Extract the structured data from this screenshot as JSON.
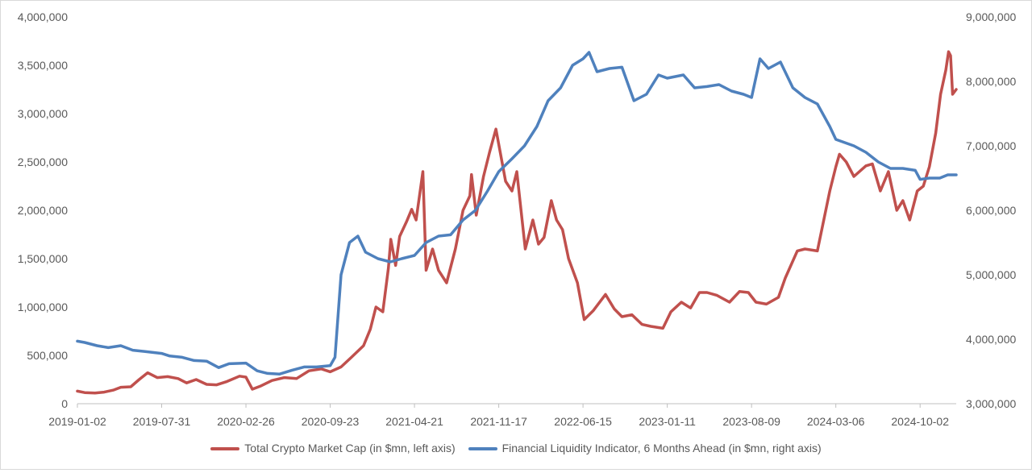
{
  "chart_data": {
    "type": "line",
    "title": "",
    "xlabel": "",
    "ylabel_left": "",
    "ylabel_right": "",
    "grid": false,
    "legend_position": "bottom",
    "x_tick_labels": [
      "2019-01-02",
      "2019-07-31",
      "2020-02-26",
      "2020-09-23",
      "2021-04-21",
      "2021-11-17",
      "2022-06-15",
      "2023-01-11",
      "2023-08-09",
      "2024-03-06",
      "2024-10-02"
    ],
    "x_range": [
      "2019-01-02",
      "2024-12-31"
    ],
    "y_left": {
      "range": [
        0,
        4000000
      ],
      "ticks": [
        "0",
        "500,000",
        "1,000,000",
        "1,500,000",
        "2,000,000",
        "2,500,000",
        "3,000,000",
        "3,500,000",
        "4,000,000"
      ]
    },
    "y_right": {
      "range": [
        3000000,
        9000000
      ],
      "ticks": [
        "3,000,000",
        "4,000,000",
        "5,000,000",
        "6,000,000",
        "7,000,000",
        "8,000,000",
        "9,000,000"
      ]
    },
    "series": [
      {
        "name": "Total Crypto Market Cap (in $mn, left axis)",
        "axis": "left",
        "color": "#c0504d",
        "points": [
          [
            "2019-01-02",
            130000
          ],
          [
            "2019-01-20",
            115000
          ],
          [
            "2019-02-15",
            110000
          ],
          [
            "2019-03-10",
            120000
          ],
          [
            "2019-04-01",
            140000
          ],
          [
            "2019-04-20",
            170000
          ],
          [
            "2019-05-15",
            175000
          ],
          [
            "2019-06-05",
            250000
          ],
          [
            "2019-06-26",
            320000
          ],
          [
            "2019-07-20",
            270000
          ],
          [
            "2019-08-15",
            280000
          ],
          [
            "2019-09-10",
            260000
          ],
          [
            "2019-10-01",
            215000
          ],
          [
            "2019-10-25",
            250000
          ],
          [
            "2019-11-20",
            200000
          ],
          [
            "2019-12-15",
            195000
          ],
          [
            "2020-01-10",
            230000
          ],
          [
            "2020-02-10",
            285000
          ],
          [
            "2020-02-26",
            275000
          ],
          [
            "2020-03-13",
            150000
          ],
          [
            "2020-04-01",
            180000
          ],
          [
            "2020-05-01",
            240000
          ],
          [
            "2020-06-01",
            270000
          ],
          [
            "2020-07-01",
            260000
          ],
          [
            "2020-08-01",
            340000
          ],
          [
            "2020-09-01",
            360000
          ],
          [
            "2020-09-23",
            330000
          ],
          [
            "2020-10-20",
            380000
          ],
          [
            "2020-11-15",
            480000
          ],
          [
            "2020-12-15",
            600000
          ],
          [
            "2021-01-01",
            770000
          ],
          [
            "2021-01-15",
            1000000
          ],
          [
            "2021-02-01",
            950000
          ],
          [
            "2021-02-15",
            1400000
          ],
          [
            "2021-02-21",
            1700000
          ],
          [
            "2021-03-05",
            1430000
          ],
          [
            "2021-03-15",
            1730000
          ],
          [
            "2021-04-01",
            1880000
          ],
          [
            "2021-04-14",
            2010000
          ],
          [
            "2021-04-25",
            1900000
          ],
          [
            "2021-05-12",
            2400000
          ],
          [
            "2021-05-20",
            1380000
          ],
          [
            "2021-06-05",
            1600000
          ],
          [
            "2021-06-20",
            1380000
          ],
          [
            "2021-07-10",
            1250000
          ],
          [
            "2021-08-01",
            1600000
          ],
          [
            "2021-08-20",
            2000000
          ],
          [
            "2021-09-06",
            2150000
          ],
          [
            "2021-09-10",
            2370000
          ],
          [
            "2021-09-22",
            1950000
          ],
          [
            "2021-10-10",
            2350000
          ],
          [
            "2021-10-25",
            2600000
          ],
          [
            "2021-11-10",
            2840000
          ],
          [
            "2021-12-04",
            2300000
          ],
          [
            "2021-12-20",
            2200000
          ],
          [
            "2022-01-01",
            2400000
          ],
          [
            "2022-01-22",
            1600000
          ],
          [
            "2022-02-10",
            1900000
          ],
          [
            "2022-02-24",
            1650000
          ],
          [
            "2022-03-10",
            1720000
          ],
          [
            "2022-03-28",
            2100000
          ],
          [
            "2022-04-10",
            1900000
          ],
          [
            "2022-04-25",
            1800000
          ],
          [
            "2022-05-10",
            1500000
          ],
          [
            "2022-06-01",
            1250000
          ],
          [
            "2022-06-18",
            870000
          ],
          [
            "2022-07-10",
            960000
          ],
          [
            "2022-08-10",
            1130000
          ],
          [
            "2022-09-01",
            980000
          ],
          [
            "2022-09-20",
            900000
          ],
          [
            "2022-10-15",
            920000
          ],
          [
            "2022-11-09",
            820000
          ],
          [
            "2022-12-01",
            800000
          ],
          [
            "2022-12-31",
            780000
          ],
          [
            "2023-01-20",
            950000
          ],
          [
            "2023-02-15",
            1050000
          ],
          [
            "2023-03-10",
            990000
          ],
          [
            "2023-04-01",
            1150000
          ],
          [
            "2023-04-20",
            1150000
          ],
          [
            "2023-05-15",
            1120000
          ],
          [
            "2023-06-15",
            1050000
          ],
          [
            "2023-07-10",
            1160000
          ],
          [
            "2023-08-01",
            1150000
          ],
          [
            "2023-08-20",
            1050000
          ],
          [
            "2023-09-15",
            1030000
          ],
          [
            "2023-10-15",
            1100000
          ],
          [
            "2023-11-01",
            1300000
          ],
          [
            "2023-12-01",
            1580000
          ],
          [
            "2023-12-20",
            1600000
          ],
          [
            "2024-01-20",
            1580000
          ],
          [
            "2024-02-20",
            2200000
          ],
          [
            "2024-03-06",
            2450000
          ],
          [
            "2024-03-15",
            2580000
          ],
          [
            "2024-04-01",
            2500000
          ],
          [
            "2024-04-20",
            2350000
          ],
          [
            "2024-05-20",
            2460000
          ],
          [
            "2024-06-05",
            2480000
          ],
          [
            "2024-06-25",
            2200000
          ],
          [
            "2024-07-15",
            2400000
          ],
          [
            "2024-08-05",
            2000000
          ],
          [
            "2024-08-20",
            2100000
          ],
          [
            "2024-09-06",
            1900000
          ],
          [
            "2024-09-25",
            2200000
          ],
          [
            "2024-10-10",
            2250000
          ],
          [
            "2024-10-25",
            2450000
          ],
          [
            "2024-11-10",
            2800000
          ],
          [
            "2024-11-22",
            3200000
          ],
          [
            "2024-12-05",
            3450000
          ],
          [
            "2024-12-12",
            3640000
          ],
          [
            "2024-12-17",
            3600000
          ],
          [
            "2024-12-22",
            3200000
          ],
          [
            "2024-12-31",
            3250000
          ]
        ]
      },
      {
        "name": "Financial Liquidity Indicator,  6 Months Ahead (in $mn,  right axis)",
        "axis": "right",
        "color": "#4f81bd",
        "points": [
          [
            "2019-01-02",
            3970000
          ],
          [
            "2019-01-20",
            3950000
          ],
          [
            "2019-02-20",
            3900000
          ],
          [
            "2019-03-20",
            3870000
          ],
          [
            "2019-04-20",
            3900000
          ],
          [
            "2019-05-20",
            3830000
          ],
          [
            "2019-06-20",
            3810000
          ],
          [
            "2019-07-31",
            3780000
          ],
          [
            "2019-08-20",
            3740000
          ],
          [
            "2019-09-20",
            3720000
          ],
          [
            "2019-10-20",
            3670000
          ],
          [
            "2019-11-20",
            3660000
          ],
          [
            "2019-12-20",
            3560000
          ],
          [
            "2020-01-15",
            3620000
          ],
          [
            "2020-02-26",
            3630000
          ],
          [
            "2020-03-25",
            3510000
          ],
          [
            "2020-04-20",
            3470000
          ],
          [
            "2020-05-20",
            3460000
          ],
          [
            "2020-06-20",
            3520000
          ],
          [
            "2020-07-20",
            3570000
          ],
          [
            "2020-08-20",
            3570000
          ],
          [
            "2020-09-23",
            3590000
          ],
          [
            "2020-10-05",
            3720000
          ],
          [
            "2020-10-20",
            5000000
          ],
          [
            "2020-11-10",
            5500000
          ],
          [
            "2020-12-01",
            5600000
          ],
          [
            "2020-12-20",
            5350000
          ],
          [
            "2021-01-20",
            5250000
          ],
          [
            "2021-02-20",
            5200000
          ],
          [
            "2021-03-20",
            5250000
          ],
          [
            "2021-04-21",
            5300000
          ],
          [
            "2021-05-20",
            5500000
          ],
          [
            "2021-06-20",
            5600000
          ],
          [
            "2021-07-20",
            5620000
          ],
          [
            "2021-08-20",
            5850000
          ],
          [
            "2021-09-20",
            6000000
          ],
          [
            "2021-10-20",
            6300000
          ],
          [
            "2021-11-17",
            6600000
          ],
          [
            "2021-12-20",
            6800000
          ],
          [
            "2022-01-20",
            7000000
          ],
          [
            "2022-02-20",
            7300000
          ],
          [
            "2022-03-20",
            7700000
          ],
          [
            "2022-04-20",
            7900000
          ],
          [
            "2022-05-20",
            8250000
          ],
          [
            "2022-06-15",
            8350000
          ],
          [
            "2022-06-30",
            8450000
          ],
          [
            "2022-07-20",
            8150000
          ],
          [
            "2022-08-20",
            8200000
          ],
          [
            "2022-09-20",
            8220000
          ],
          [
            "2022-10-20",
            7700000
          ],
          [
            "2022-11-20",
            7800000
          ],
          [
            "2022-12-20",
            8100000
          ],
          [
            "2023-01-11",
            8050000
          ],
          [
            "2023-02-20",
            8100000
          ],
          [
            "2023-03-20",
            7900000
          ],
          [
            "2023-04-20",
            7920000
          ],
          [
            "2023-05-20",
            7950000
          ],
          [
            "2023-06-20",
            7850000
          ],
          [
            "2023-07-20",
            7800000
          ],
          [
            "2023-08-09",
            7750000
          ],
          [
            "2023-08-30",
            8350000
          ],
          [
            "2023-09-20",
            8200000
          ],
          [
            "2023-10-20",
            8300000
          ],
          [
            "2023-11-20",
            7900000
          ],
          [
            "2023-12-20",
            7750000
          ],
          [
            "2024-01-20",
            7650000
          ],
          [
            "2024-02-20",
            7300000
          ],
          [
            "2024-03-06",
            7100000
          ],
          [
            "2024-04-20",
            7000000
          ],
          [
            "2024-05-20",
            6900000
          ],
          [
            "2024-06-20",
            6750000
          ],
          [
            "2024-07-20",
            6650000
          ],
          [
            "2024-08-20",
            6650000
          ],
          [
            "2024-09-20",
            6620000
          ],
          [
            "2024-10-02",
            6480000
          ],
          [
            "2024-10-25",
            6500000
          ],
          [
            "2024-11-20",
            6500000
          ],
          [
            "2024-12-10",
            6550000
          ],
          [
            "2024-12-31",
            6550000
          ]
        ]
      }
    ]
  }
}
